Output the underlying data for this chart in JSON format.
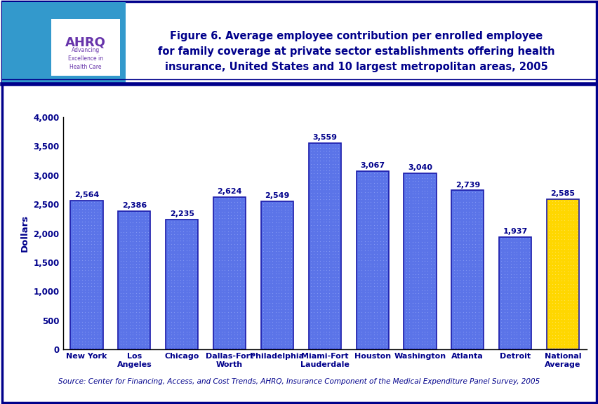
{
  "categories": [
    "New York",
    "Los\nAngeles",
    "Chicago",
    "Dallas-Fort\nWorth",
    "Philadelphia",
    "Miami-Fort\nLauderdale",
    "Houston",
    "Washington",
    "Atlanta",
    "Detroit",
    "National\nAverage"
  ],
  "values": [
    2564,
    2386,
    2235,
    2624,
    2549,
    3559,
    3067,
    3040,
    2739,
    1937,
    2585
  ],
  "bar_colors": [
    "#5B74E8",
    "#5B74E8",
    "#5B74E8",
    "#5B74E8",
    "#5B74E8",
    "#5B74E8",
    "#5B74E8",
    "#5B74E8",
    "#5B74E8",
    "#5B74E8",
    "#FFD700"
  ],
  "title_line1": "Figure 6. Average employee contribution per enrolled employee",
  "title_line2": "for family coverage at private sector establishments offering health",
  "title_line3": "insurance, United States and 10 largest metropolitan areas, 2005",
  "ylabel": "Dollars",
  "ylim": [
    0,
    4000
  ],
  "yticks": [
    0,
    500,
    1000,
    1500,
    2000,
    2500,
    3000,
    3500,
    4000
  ],
  "source_text": "Source: Center for Financing, Access, and Cost Trends, AHRQ, Insurance Component of the Medical Expenditure Panel Survey, 2005",
  "title_color": "#00008B",
  "label_color": "#00008B",
  "bar_edge_color": "#1a1aaa",
  "value_labels": [
    "2,564",
    "2,386",
    "2,235",
    "2,624",
    "2,549",
    "3,559",
    "3,067",
    "3,040",
    "2,739",
    "1,937",
    "2,585"
  ],
  "background_color": "#FFFFFF",
  "outer_border_color": "#00008B",
  "separator_line_color": "#00008B",
  "header_bg": "#FFFFFF",
  "logo_bg": "#3399CC",
  "figsize": [
    8.53,
    5.76
  ],
  "dpi": 100
}
